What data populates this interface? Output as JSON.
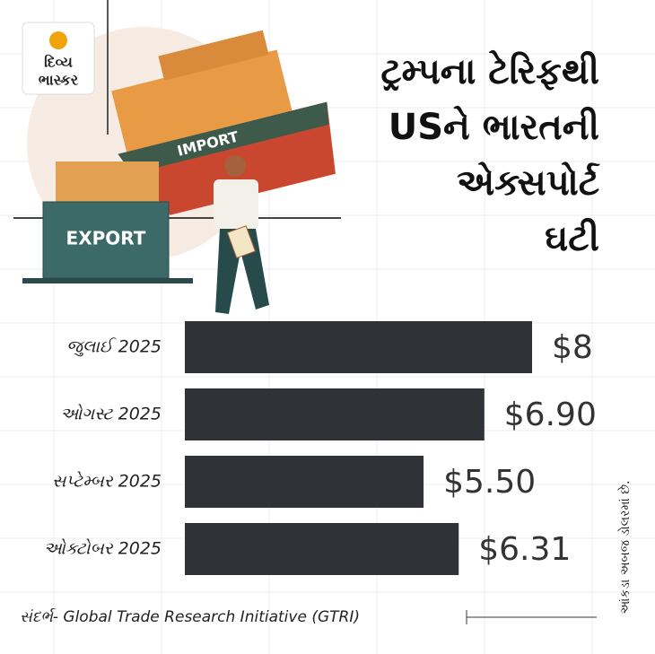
{
  "logo": {
    "line1": "દિવ્ય",
    "line2": "ભાસ્કર"
  },
  "illustration": {
    "import_label": "IMPORT",
    "export_label": "EXPORT"
  },
  "chart_data": {
    "type": "bar",
    "orientation": "horizontal",
    "title": [
      "ટ્રમ્પના ટેરિફથી",
      "USને ભારતની",
      "એક્સપોર્ટ",
      "ઘટી"
    ],
    "categories": [
      "જુલાઈ 2025",
      "ઓગસ્ટ 2025",
      "સપ્ટેમ્બર 2025",
      "ઓક્ટોબર 2025"
    ],
    "values": [
      8,
      6.9,
      5.5,
      6.31
    ],
    "value_labels": [
      "$8",
      "$6.90",
      "$5.50",
      "$6.31"
    ],
    "color": "#2f3337",
    "source": "સંદર્ભ- Global Trade Research Initiative (GTRI)",
    "note": "આંકડા અબજ ડોલરમાં છે."
  }
}
